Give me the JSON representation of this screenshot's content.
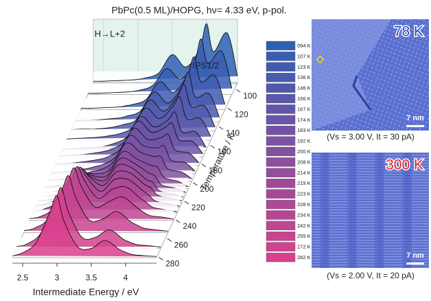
{
  "chart_data": {
    "type": "waterfall",
    "title": "PbPc(0.5 ML)/HOPG,  hν= 4.33 eV, p-pol.",
    "annotations": [
      "H→L+2",
      "IPS1/2"
    ],
    "xlabel": "Intermediate Energy / eV",
    "zlabel": "Temperature / K",
    "x": [
      2.35,
      2.5,
      2.7,
      2.9,
      3.0,
      3.1,
      3.3,
      3.5,
      3.7,
      3.9,
      4.0,
      4.1,
      4.3,
      4.45
    ],
    "xlim": [
      2.35,
      4.45
    ],
    "xticks": [
      2.5,
      3.0,
      3.5,
      4.0
    ],
    "ylim": [
      0,
      1
    ],
    "zlim": [
      94,
      282
    ],
    "zticks": [
      100,
      120,
      140,
      160,
      180,
      200,
      220,
      240,
      260,
      280
    ],
    "grid": true,
    "series": [
      {
        "name": "094 K",
        "z": 94,
        "color": "#2f5fb5",
        "values": [
          0.02,
          0.02,
          0.03,
          0.04,
          0.05,
          0.07,
          0.15,
          0.45,
          0.25,
          0.55,
          0.95,
          0.5,
          0.8,
          0.1
        ]
      },
      {
        "name": "107 K",
        "z": 107,
        "color": "#385eb3",
        "values": [
          0.02,
          0.02,
          0.03,
          0.04,
          0.05,
          0.07,
          0.15,
          0.42,
          0.25,
          0.5,
          0.9,
          0.5,
          0.7,
          0.1
        ]
      },
      {
        "name": "123 K",
        "z": 123,
        "color": "#405cb1",
        "values": [
          0.02,
          0.02,
          0.03,
          0.04,
          0.06,
          0.08,
          0.16,
          0.45,
          0.28,
          0.55,
          0.85,
          0.45,
          0.55,
          0.08
        ]
      },
      {
        "name": "136 K",
        "z": 136,
        "color": "#495baf",
        "values": [
          0.02,
          0.02,
          0.03,
          0.05,
          0.06,
          0.09,
          0.17,
          0.48,
          0.3,
          0.55,
          0.8,
          0.4,
          0.45,
          0.07
        ]
      },
      {
        "name": "146 K",
        "z": 146,
        "color": "#5159ad",
        "values": [
          0.02,
          0.03,
          0.03,
          0.05,
          0.07,
          0.1,
          0.18,
          0.5,
          0.32,
          0.55,
          0.75,
          0.4,
          0.4,
          0.06
        ]
      },
      {
        "name": "156 K",
        "z": 156,
        "color": "#5a58ab",
        "values": [
          0.02,
          0.03,
          0.04,
          0.06,
          0.08,
          0.1,
          0.2,
          0.52,
          0.35,
          0.55,
          0.7,
          0.35,
          0.35,
          0.06
        ]
      },
      {
        "name": "167 K",
        "z": 167,
        "color": "#6256a9",
        "values": [
          0.02,
          0.03,
          0.04,
          0.06,
          0.08,
          0.11,
          0.22,
          0.55,
          0.38,
          0.5,
          0.62,
          0.3,
          0.3,
          0.05
        ]
      },
      {
        "name": "174 K",
        "z": 174,
        "color": "#6b55a7",
        "values": [
          0.02,
          0.03,
          0.04,
          0.07,
          0.09,
          0.12,
          0.24,
          0.58,
          0.4,
          0.48,
          0.55,
          0.28,
          0.25,
          0.05
        ]
      },
      {
        "name": "183 K",
        "z": 183,
        "color": "#7353a5",
        "values": [
          0.02,
          0.03,
          0.05,
          0.08,
          0.1,
          0.13,
          0.26,
          0.6,
          0.42,
          0.45,
          0.5,
          0.25,
          0.2,
          0.04
        ]
      },
      {
        "name": "192 K",
        "z": 192,
        "color": "#7c52a3",
        "values": [
          0.02,
          0.03,
          0.05,
          0.09,
          0.12,
          0.15,
          0.28,
          0.62,
          0.45,
          0.42,
          0.45,
          0.22,
          0.18,
          0.04
        ]
      },
      {
        "name": "200 K",
        "z": 200,
        "color": "#8450a0",
        "values": [
          0.02,
          0.03,
          0.06,
          0.12,
          0.16,
          0.18,
          0.3,
          0.62,
          0.47,
          0.4,
          0.4,
          0.2,
          0.15,
          0.04
        ]
      },
      {
        "name": "208 K",
        "z": 208,
        "color": "#8d4f9e",
        "values": [
          0.02,
          0.04,
          0.08,
          0.18,
          0.25,
          0.24,
          0.3,
          0.6,
          0.48,
          0.38,
          0.35,
          0.18,
          0.12,
          0.03
        ]
      },
      {
        "name": "214 K",
        "z": 214,
        "color": "#954d9c",
        "values": [
          0.02,
          0.04,
          0.1,
          0.25,
          0.35,
          0.3,
          0.3,
          0.58,
          0.5,
          0.35,
          0.3,
          0.15,
          0.1,
          0.03
        ]
      },
      {
        "name": "219 K",
        "z": 219,
        "color": "#9e4c9a",
        "values": [
          0.03,
          0.05,
          0.12,
          0.32,
          0.45,
          0.36,
          0.3,
          0.55,
          0.5,
          0.32,
          0.27,
          0.13,
          0.08,
          0.03
        ]
      },
      {
        "name": "223 K",
        "z": 223,
        "color": "#a64a98",
        "values": [
          0.03,
          0.05,
          0.14,
          0.4,
          0.55,
          0.42,
          0.28,
          0.5,
          0.48,
          0.3,
          0.24,
          0.12,
          0.07,
          0.03
        ]
      },
      {
        "name": "228 K",
        "z": 228,
        "color": "#af4996",
        "values": [
          0.03,
          0.06,
          0.16,
          0.48,
          0.65,
          0.48,
          0.26,
          0.45,
          0.45,
          0.28,
          0.2,
          0.1,
          0.06,
          0.02
        ]
      },
      {
        "name": "234 K",
        "z": 234,
        "color": "#b74794",
        "values": [
          0.03,
          0.06,
          0.18,
          0.55,
          0.75,
          0.52,
          0.24,
          0.38,
          0.42,
          0.25,
          0.17,
          0.09,
          0.05,
          0.02
        ]
      },
      {
        "name": "242 K",
        "z": 242,
        "color": "#c04692",
        "values": [
          0.03,
          0.06,
          0.2,
          0.62,
          0.85,
          0.56,
          0.22,
          0.3,
          0.38,
          0.22,
          0.14,
          0.08,
          0.05,
          0.02
        ]
      },
      {
        "name": "255 K",
        "z": 255,
        "color": "#c84490",
        "values": [
          0.03,
          0.07,
          0.22,
          0.68,
          0.92,
          0.58,
          0.2,
          0.22,
          0.34,
          0.18,
          0.12,
          0.07,
          0.04,
          0.02
        ]
      },
      {
        "name": "272 K",
        "z": 272,
        "color": "#d1438e",
        "values": [
          0.03,
          0.07,
          0.24,
          0.72,
          0.98,
          0.6,
          0.18,
          0.18,
          0.3,
          0.15,
          0.1,
          0.06,
          0.04,
          0.02
        ]
      },
      {
        "name": "282 K",
        "z": 282,
        "color": "#d9418c",
        "values": [
          0.03,
          0.08,
          0.25,
          0.75,
          1.0,
          0.6,
          0.18,
          0.15,
          0.28,
          0.14,
          0.09,
          0.05,
          0.03,
          0.02
        ]
      }
    ]
  },
  "panels": [
    {
      "label": "78 K",
      "scale": "7 nm",
      "caption": "(Vs = 3.00 V, It = 30 pA)"
    },
    {
      "label": "300 K",
      "scale": "7 nm",
      "caption": "(Vs = 2.00 V, It = 20 pA)"
    }
  ]
}
